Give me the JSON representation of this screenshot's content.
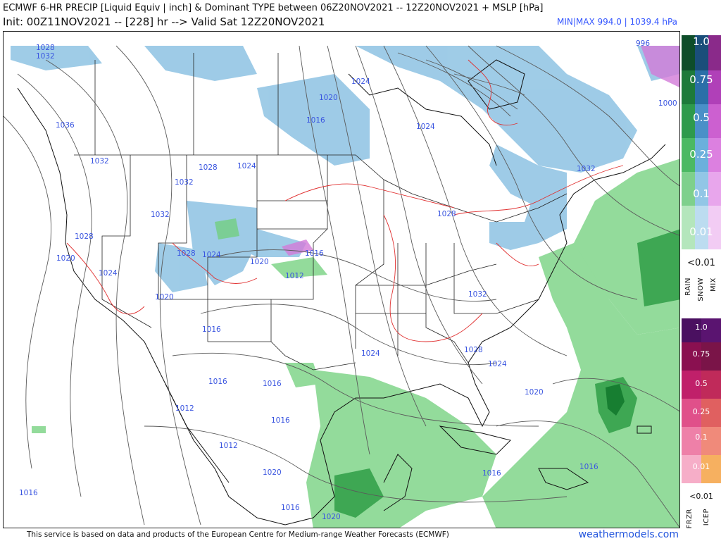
{
  "header": {
    "title_line1": "ECMWF 6-HR PRECIP [Liquid Equiv | inch] & Dominant TYPE between 06Z20NOV2021 -- 12Z20NOV2021 + MSLP [hPa]",
    "title_line2": "Init: 00Z11NOV2021 -- [228] hr --> Valid Sat 12Z20NOV2021",
    "minmax": "MIN|MAX 994.0 | 1039.4 hPa"
  },
  "legend": {
    "rain_snow_mix": {
      "labels": [
        "1.0",
        "0.75",
        "0.5",
        "0.25",
        "0.1",
        "0.01"
      ],
      "lt_label": "<0.01",
      "types": [
        "RAIN",
        "SNOW",
        "MIX"
      ]
    },
    "frzr_icep": {
      "labels": [
        "1.0",
        "0.75",
        "0.5",
        "0.25",
        "0.1",
        "0.01"
      ],
      "lt_label": "<0.01",
      "types": [
        "FRZR",
        "ICEP"
      ]
    }
  },
  "isobar_labels": [
    "1028",
    "1032",
    "1036",
    "1032",
    "1032",
    "1032",
    "1028",
    "1020",
    "1024",
    "1020",
    "1016",
    "1016",
    "1016",
    "1012",
    "1012",
    "1016",
    "1020",
    "1016",
    "1016",
    "1020",
    "1028",
    "1024",
    "1020",
    "1016",
    "1012",
    "1028",
    "1024",
    "1032",
    "1024",
    "1028",
    "1024",
    "1020",
    "1016",
    "1016",
    "1020",
    "1024",
    "1016",
    "1024",
    "1028",
    "1032",
    "1000",
    "996",
    "32"
  ],
  "colors": {
    "rain": "#3fb95c",
    "snow": "#6fb0d8",
    "mix": "#d070d8",
    "isobar": "#5a5a5a",
    "freezing_line": "#e03030",
    "label_blue": "#3a55e0"
  },
  "footer": {
    "credit": "This service is based on data and products of the European Centre for Medium-range Weather Forecasts (ECMWF)",
    "website": "weathermodels.com"
  }
}
